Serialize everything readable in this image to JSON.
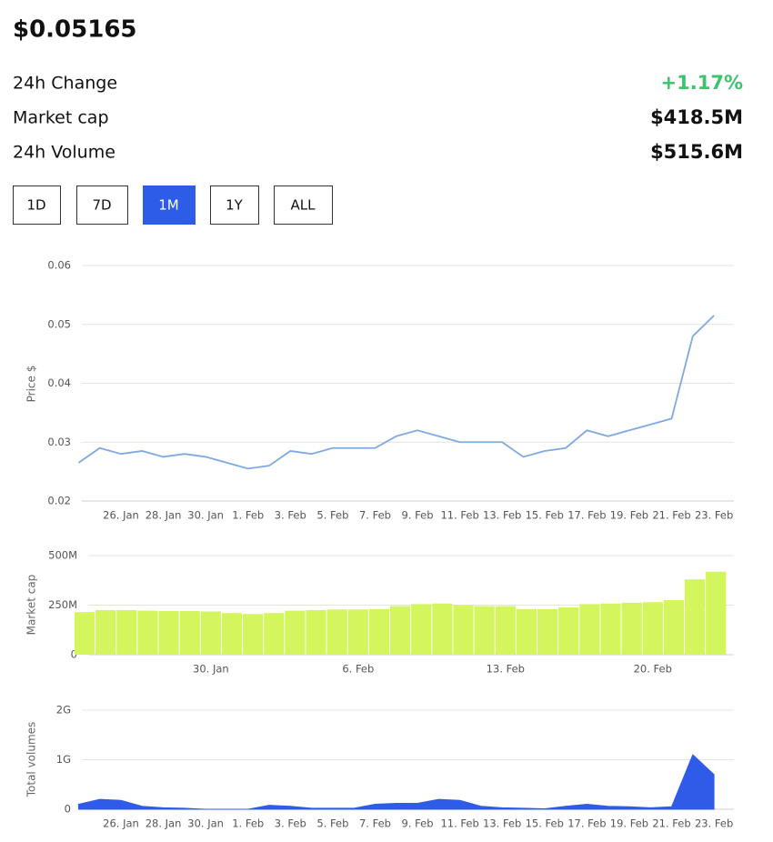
{
  "header": {
    "price": "$0.05165",
    "stats": [
      {
        "label": "24h Change",
        "value": "+1.17%"
      },
      {
        "label": "Market cap",
        "value": "$418.5M"
      },
      {
        "label": "24h Volume",
        "value": "$515.6M"
      }
    ]
  },
  "timeframes": {
    "options": [
      "1D",
      "7D",
      "1M",
      "1Y",
      "ALL"
    ],
    "selected": 2
  },
  "chart_data": [
    {
      "type": "line",
      "ylabel": "Price $",
      "color": "#7fa9e2",
      "categories": [
        null,
        null,
        "26. Jan",
        null,
        "28. Jan",
        null,
        "30. Jan",
        null,
        "1. Feb",
        null,
        "3. Feb",
        null,
        "5. Feb",
        null,
        "7. Feb",
        null,
        "9. Feb",
        null,
        "11. Feb",
        null,
        "13. Feb",
        null,
        "15. Feb",
        null,
        "17. Feb",
        null,
        "19. Feb",
        null,
        "21. Feb",
        null,
        "23. Feb"
      ],
      "values": [
        0.0265,
        0.029,
        0.028,
        0.0285,
        0.0275,
        0.028,
        0.0275,
        0.0265,
        0.0255,
        0.026,
        0.0285,
        0.028,
        0.029,
        0.029,
        0.029,
        0.031,
        0.032,
        0.031,
        0.03,
        0.03,
        0.03,
        0.0275,
        0.0285,
        0.029,
        0.032,
        0.031,
        0.032,
        0.033,
        0.034,
        0.048,
        0.0515
      ],
      "ylim": [
        0.02,
        0.06
      ],
      "yticks": [
        0.02,
        0.03,
        0.04,
        0.05,
        0.06
      ],
      "grid": true
    },
    {
      "type": "bar",
      "ylabel": "Market cap",
      "color": "#d3f65f",
      "categories": [
        null,
        null,
        null,
        null,
        null,
        null,
        "30. Jan",
        null,
        null,
        null,
        null,
        null,
        null,
        "6. Feb",
        null,
        null,
        null,
        null,
        null,
        null,
        "13. Feb",
        null,
        null,
        null,
        null,
        null,
        null,
        "20. Feb",
        null,
        null,
        null
      ],
      "values": [
        215000000,
        225000000,
        225000000,
        222000000,
        220000000,
        220000000,
        218000000,
        210000000,
        205000000,
        210000000,
        222000000,
        225000000,
        228000000,
        228000000,
        230000000,
        245000000,
        255000000,
        258000000,
        250000000,
        245000000,
        245000000,
        230000000,
        230000000,
        238000000,
        255000000,
        258000000,
        262000000,
        265000000,
        275000000,
        380000000,
        418500000
      ],
      "ylim": [
        0,
        500000000
      ],
      "yticks": [
        0,
        {
          "value": 250000000,
          "label": "250M"
        },
        {
          "value": 500000000,
          "label": "500M"
        }
      ],
      "grid": true
    },
    {
      "type": "area",
      "ylabel": "Total volumes",
      "color": "#2f5be8",
      "categories": [
        null,
        null,
        "26. Jan",
        null,
        "28. Jan",
        null,
        "30. Jan",
        null,
        "1. Feb",
        null,
        "3. Feb",
        null,
        "5. Feb",
        null,
        "7. Feb",
        null,
        "9. Feb",
        null,
        "11. Feb",
        null,
        "13. Feb",
        null,
        "15. Feb",
        null,
        "17. Feb",
        null,
        "19. Feb",
        null,
        "21. Feb",
        null,
        "23. Feb"
      ],
      "values": [
        100000000,
        200000000,
        180000000,
        60000000,
        30000000,
        20000000,
        0,
        0,
        0,
        80000000,
        60000000,
        20000000,
        20000000,
        20000000,
        100000000,
        120000000,
        120000000,
        200000000,
        180000000,
        60000000,
        30000000,
        20000000,
        10000000,
        60000000,
        100000000,
        60000000,
        50000000,
        30000000,
        50000000,
        1100000000,
        700000000
      ],
      "ylim": [
        0,
        2000000000
      ],
      "yticks": [
        0,
        {
          "value": 1000000000,
          "label": "1G"
        },
        {
          "value": 2000000000,
          "label": "2G"
        }
      ],
      "grid": true
    }
  ]
}
